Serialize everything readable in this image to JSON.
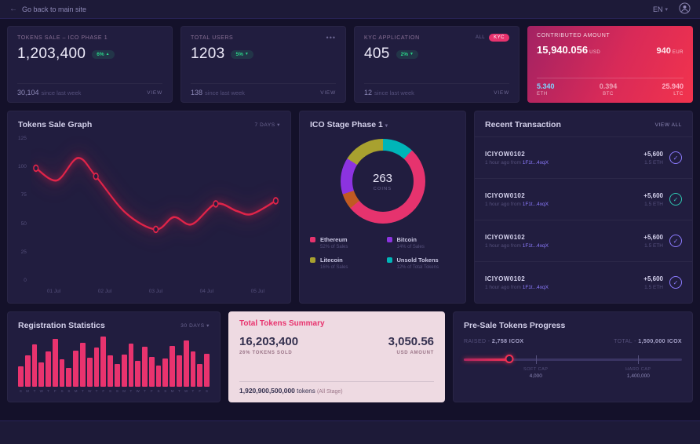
{
  "topbar": {
    "back_label": "Go back to main site",
    "lang": "EN"
  },
  "stats": [
    {
      "title": "TOKENS SALE – ICO PHASE 1",
      "value": "1,203,400",
      "badge": "6%",
      "badge_arrow": "▲",
      "sub_value": "30,104",
      "sub_label": "since last week",
      "action": "VIEW"
    },
    {
      "title": "TOTAL USERS",
      "value": "1203",
      "badge": "5%",
      "badge_arrow": "▼",
      "sub_value": "138",
      "sub_label": "since last week",
      "action": "VIEW",
      "menu": "•••"
    },
    {
      "title": "KYC APPLICATION",
      "value": "405",
      "badge": "2%",
      "badge_arrow": "▼",
      "sub_value": "12",
      "sub_label": "since last week",
      "action": "VIEW",
      "toggle_all": "ALL",
      "toggle_kyc": "KYC"
    }
  ],
  "contributed": {
    "title": "CONTRIBUTED AMOUNT",
    "usd_value": "15,940.056",
    "usd_unit": "USD",
    "eur_value": "940",
    "eur_unit": "EUR",
    "coins": [
      {
        "value": "5.340",
        "unit": "ETH",
        "color": "#7fd4ff"
      },
      {
        "value": "0.394",
        "unit": "BTC",
        "color": "rgba(255,255,255,0.55)"
      },
      {
        "value": "25.940",
        "unit": "LTC",
        "color": "#ffb3c7"
      }
    ]
  },
  "tokens_sale_graph": {
    "title": "Tokens Sale Graph",
    "range": "7 DAYS",
    "range_caret": "▾",
    "chart_data": {
      "type": "line",
      "ymax": 130,
      "yticks": [
        125,
        100,
        75,
        50,
        25,
        0
      ],
      "xticks": [
        "01 Jul",
        "02 Jul",
        "03 Jul",
        "04 Jul",
        "05 Jul"
      ],
      "points": [
        [
          0,
          108
        ],
        [
          0.35,
          96
        ],
        [
          0.7,
          118
        ],
        [
          1,
          100
        ],
        [
          1.5,
          64
        ],
        [
          2,
          48
        ],
        [
          2.3,
          60
        ],
        [
          2.6,
          53
        ],
        [
          3,
          73
        ],
        [
          3.35,
          66
        ],
        [
          3.6,
          63
        ],
        [
          4,
          76
        ]
      ],
      "marker_indices": [
        0,
        3,
        5,
        8,
        11
      ],
      "line_color": "#e02449"
    }
  },
  "ico_stage": {
    "title": "ICO Stage Phase 1",
    "title_caret": "▾",
    "center_value": "263",
    "center_label": "COINS",
    "segments": [
      {
        "name": "Unsold Tokens",
        "pct": 12,
        "color": "#00b5b8"
      },
      {
        "name": "Ethereum",
        "pct": 52,
        "color": "#e6336e"
      },
      {
        "name": "Other",
        "pct": 6,
        "color": "#c05a22"
      },
      {
        "name": "Bitcoin",
        "pct": 14,
        "color": "#8c33e0"
      },
      {
        "name": "Litecoin",
        "pct": 16,
        "color": "#a8a12f"
      }
    ],
    "legend": [
      {
        "name": "Ethereum",
        "pct": "52% of Sales",
        "color": "#e6336e"
      },
      {
        "name": "Bitcoin",
        "pct": "14% of Sales",
        "color": "#8c33e0"
      },
      {
        "name": "Litecoin",
        "pct": "16% of Sales",
        "color": "#a8a12f"
      },
      {
        "name": "Unsold Tokens",
        "pct": "12% of Total Tokens",
        "color": "#00b5b8"
      }
    ]
  },
  "transactions": {
    "title": "Recent Transaction",
    "view_all": "VIEW ALL",
    "items": [
      {
        "id": "ICIYOW0102",
        "time": "1 hour ago from",
        "addr": "1F1t...4xqX",
        "amount": "+5,600",
        "eth": "1.5 ETH",
        "icon": "✓",
        "icon_color": "#8c7bff"
      },
      {
        "id": "ICIYOW0102",
        "time": "1 hour ago from",
        "addr": "1F1t...4xqX",
        "amount": "+5,600",
        "eth": "1.5 ETH",
        "icon": "✓",
        "icon_color": "#2fc6b0"
      },
      {
        "id": "ICIYOW0102",
        "time": "1 hour ago from",
        "addr": "1F1t...4xqX",
        "amount": "+5,600",
        "eth": "1.5 ETH",
        "icon": "✓",
        "icon_color": "#8c7bff"
      },
      {
        "id": "ICIYOW0102",
        "time": "1 hour ago from",
        "addr": "1F1t...4xqX",
        "amount": "+5,600",
        "eth": "1.5 ETH",
        "icon": "✓",
        "icon_color": "#8c7bff"
      }
    ]
  },
  "registration": {
    "title": "Registration Statistics",
    "range": "30 DAYS",
    "range_caret": "▾",
    "chart_data": {
      "type": "bar",
      "values": [
        40,
        62,
        85,
        48,
        70,
        95,
        55,
        38,
        72,
        88,
        58,
        78,
        100,
        62,
        46,
        64,
        86,
        52,
        80,
        60,
        42,
        56,
        82,
        63,
        92,
        70,
        46,
        66
      ],
      "days": [
        "S",
        "M",
        "T",
        "W",
        "T",
        "F",
        "S",
        "S",
        "M",
        "T",
        "W",
        "T",
        "F",
        "S",
        "S",
        "M",
        "T",
        "W",
        "T",
        "F",
        "S",
        "S",
        "M",
        "T",
        "W",
        "T",
        "F",
        "S"
      ],
      "bar_color": "#e8336e"
    }
  },
  "summary": {
    "title": "Total Tokens Summary",
    "tokens_value": "16,203,400",
    "tokens_label": "26% TOKENS SOLD",
    "usd_value": "3,050.56",
    "usd_label": "USD AMOUNT",
    "total_value": "1,920,900,500,000",
    "total_label": "tokens",
    "total_note": "(All Stage)"
  },
  "presale": {
    "title": "Pre-Sale Tokens Progress",
    "raised_label": "RAISED -",
    "raised_value": "2,758 ICOX",
    "total_label": "TOTAL -",
    "total_value": "1,500,000 ICOX",
    "progress_pct": 21,
    "soft_cap_label": "SOFT CAP",
    "soft_cap_value": "4,000",
    "soft_pos_pct": 33,
    "hard_cap_label": "HARD CAP",
    "hard_cap_value": "1,400,000",
    "hard_pos_pct": 80
  }
}
